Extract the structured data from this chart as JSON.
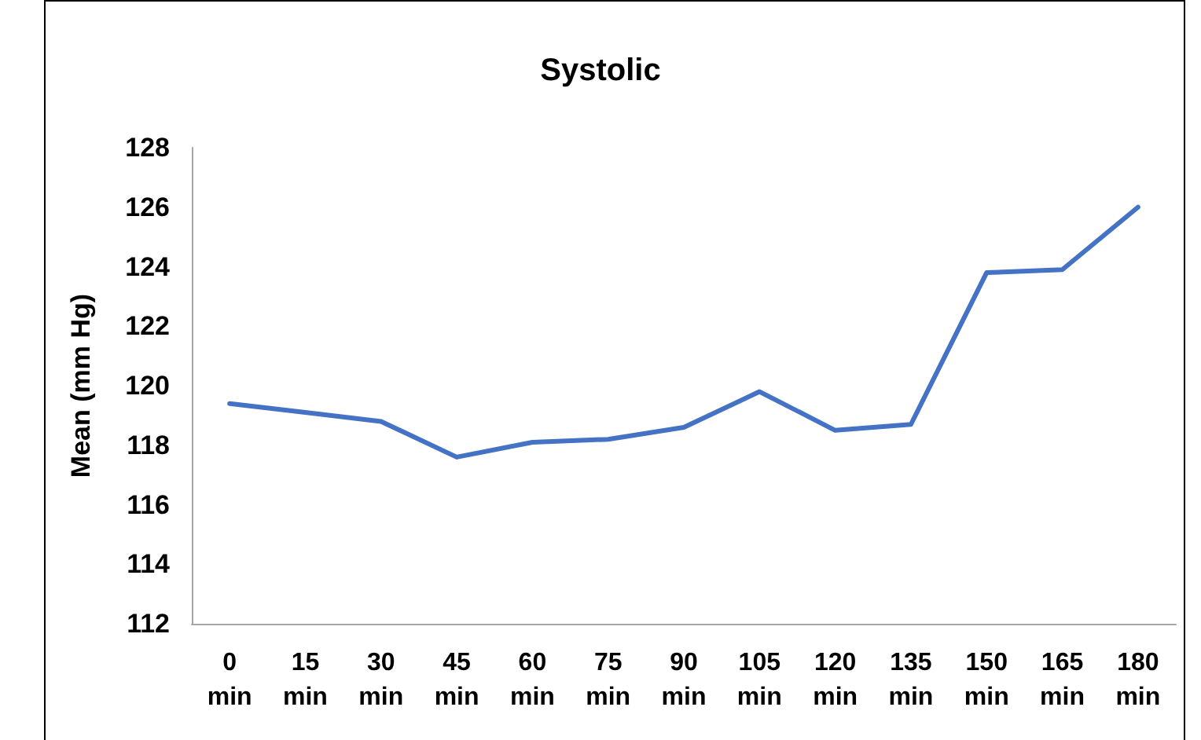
{
  "chart_data": {
    "type": "line",
    "title": "Systolic",
    "ylabel": "Mean (mm Hg)",
    "categories": [
      "0 min",
      "15 min",
      "30 min",
      "45 min",
      "60 min",
      "75 min",
      "90 min",
      "105 min",
      "120 min",
      "135 min",
      "150 min",
      "165 min",
      "180 min"
    ],
    "series": [
      {
        "color": "#4472c4",
        "values": [
          119.4,
          119.1,
          118.8,
          117.6,
          118.1,
          118.2,
          118.6,
          119.8,
          118.5,
          118.7,
          123.8,
          123.9,
          126.0
        ]
      }
    ],
    "ylim": [
      112,
      128
    ],
    "yticks": [
      112,
      114,
      116,
      118,
      120,
      122,
      124,
      126,
      128
    ],
    "grid": false,
    "marker": "none",
    "line_style": "solid"
  }
}
